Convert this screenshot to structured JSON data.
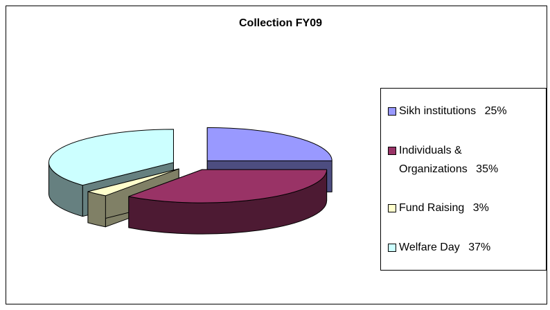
{
  "chart_data": {
    "type": "pie",
    "title": "Collection FY09",
    "categories": [
      "Sikh institutions",
      "Individuals & Organizations",
      "Fund Raising",
      "Welfare Day"
    ],
    "values": [
      25,
      35,
      3,
      37
    ],
    "value_labels": [
      "25%",
      "35%",
      "3%",
      "37%"
    ],
    "colors": [
      "#9999ff",
      "#993366",
      "#ffffcc",
      "#ccffff"
    ],
    "legend": "right"
  }
}
